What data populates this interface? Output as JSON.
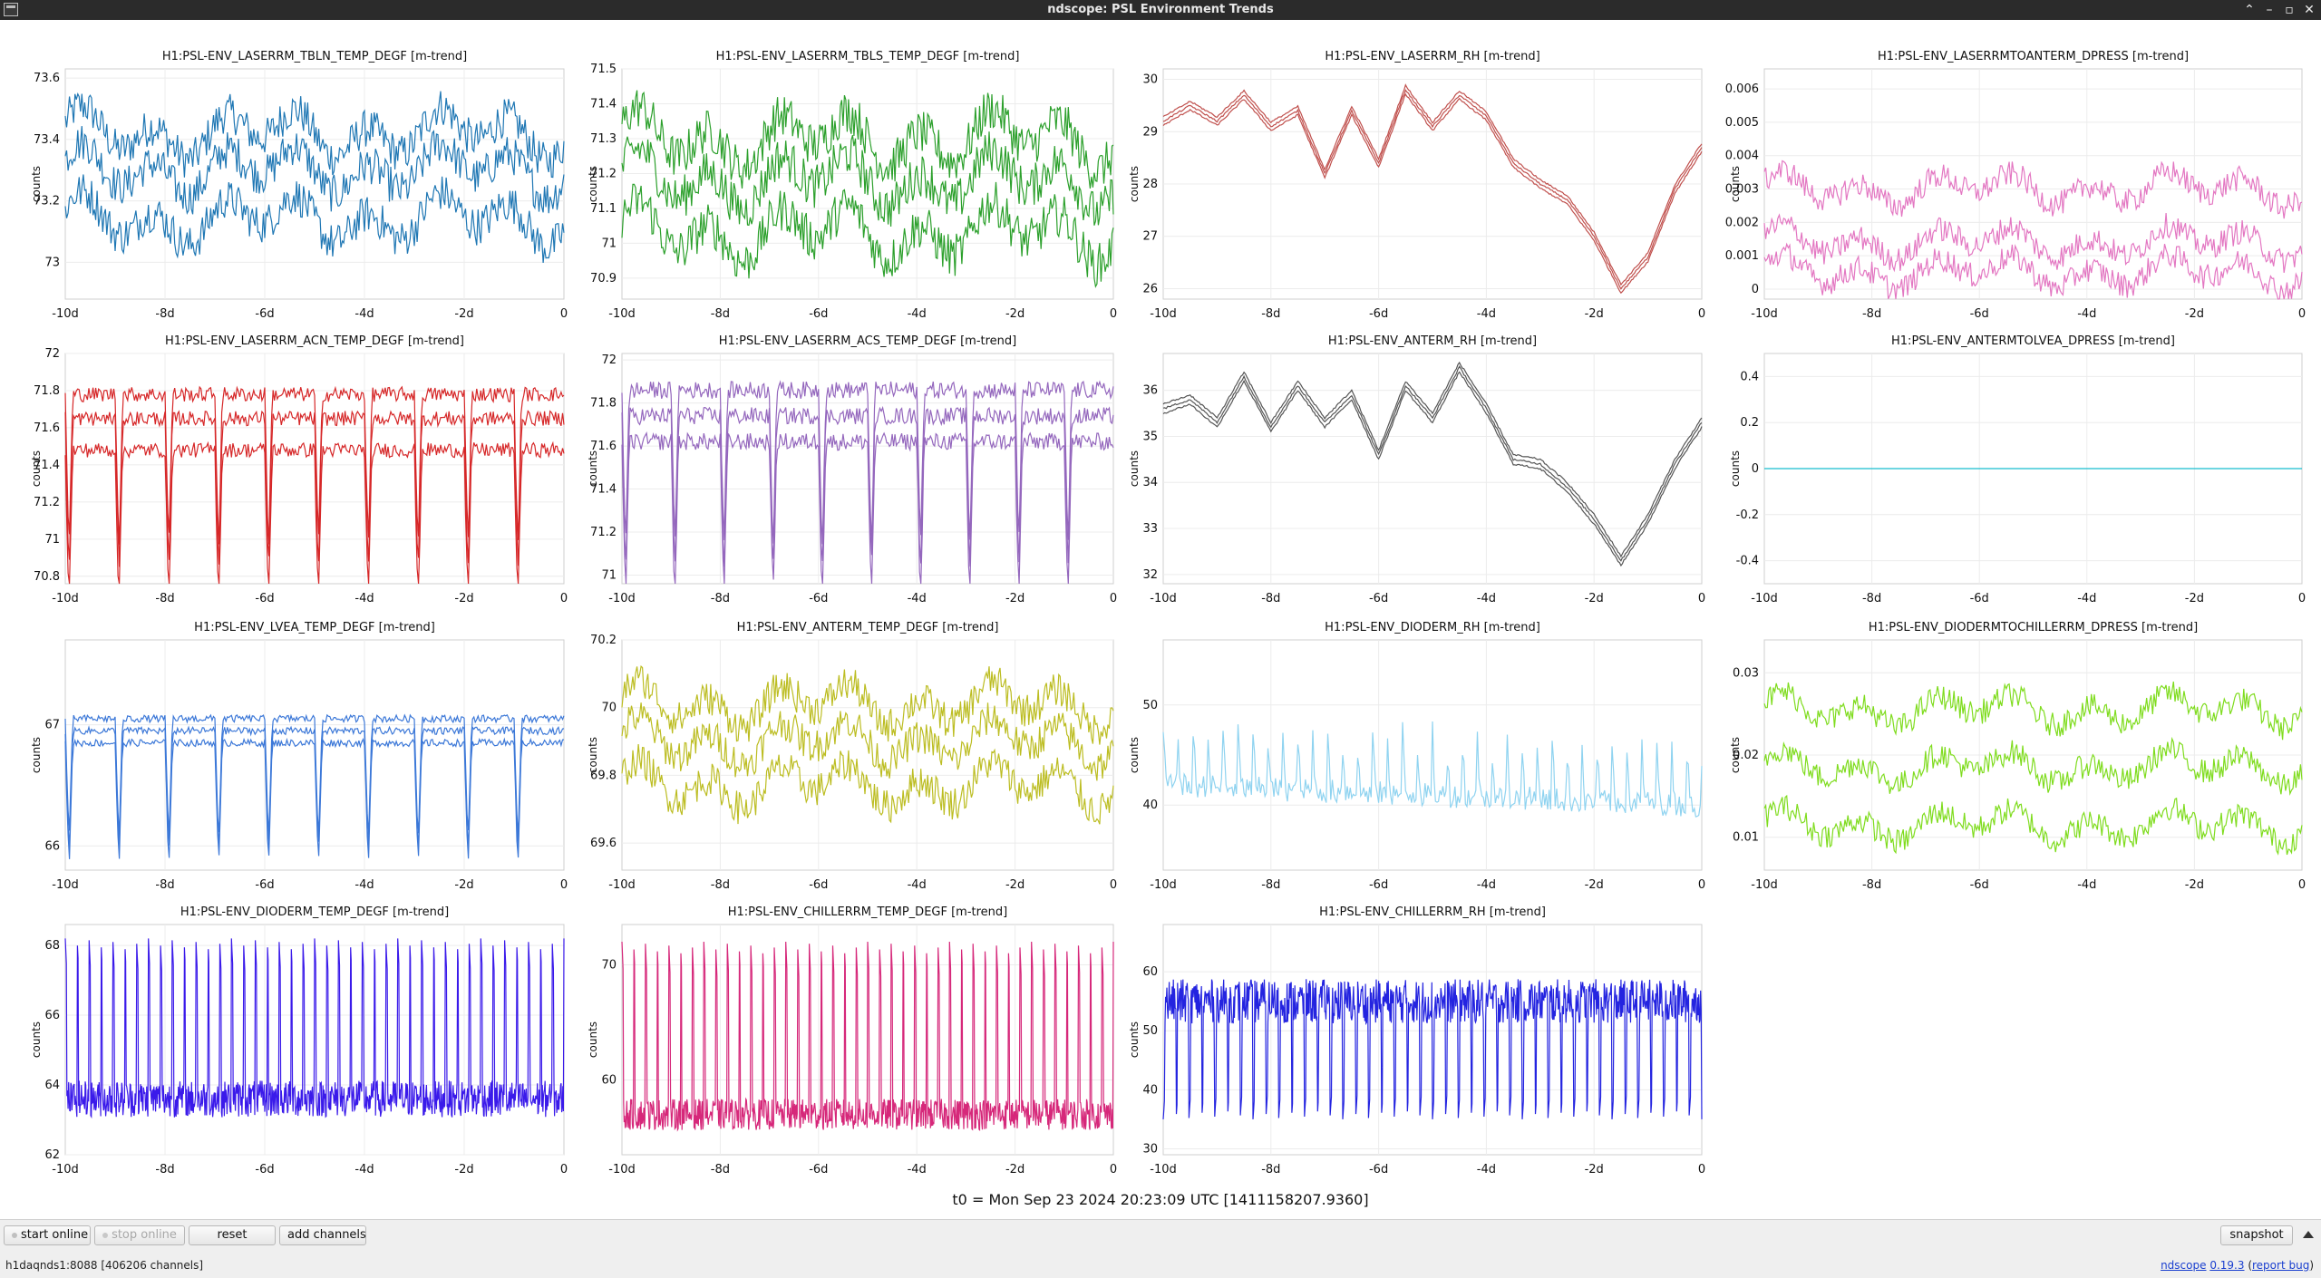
{
  "window": {
    "title": "ndscope: PSL Environment Trends"
  },
  "plots": [
    {
      "title": "H1:PSL-ENV_LASERRM_TBLN_TEMP_DEGF [m-trend]",
      "ylabel": "counts",
      "color": "#1f77b4",
      "yticks": [
        "73.6",
        "73.4",
        "73.2",
        "73"
      ],
      "xticks": [
        "-10d",
        "-8d",
        "-6d",
        "-4d",
        "-2d",
        "0"
      ],
      "ylim": [
        72.88,
        73.63
      ],
      "style": "band3",
      "levels": [
        73.42,
        73.3,
        73.14
      ],
      "variation": 0.05
    },
    {
      "title": "H1:PSL-ENV_LASERRM_TBLS_TEMP_DEGF [m-trend]",
      "ylabel": "counts",
      "color": "#2ca02c",
      "yticks": [
        "71.5",
        "71.4",
        "71.3",
        "71.2",
        "71.1",
        "71",
        "70.9"
      ],
      "xticks": [
        "-10d",
        "-8d",
        "-6d",
        "-4d",
        "-2d",
        "0"
      ],
      "ylim": [
        70.84,
        71.5
      ],
      "style": "band3",
      "levels": [
        71.3,
        71.18,
        71.03
      ],
      "variation": 0.05
    },
    {
      "title": "H1:PSL-ENV_LASERRM_RH [m-trend]",
      "ylabel": "counts",
      "color": "#c0504d",
      "yticks": [
        "30",
        "29",
        "28",
        "27",
        "26"
      ],
      "xticks": [
        "-10d",
        "-8d",
        "-6d",
        "-4d",
        "-2d",
        "0"
      ],
      "ylim": [
        25.8,
        30.2
      ],
      "style": "rh",
      "levels": [
        29.2,
        29.5,
        29.2,
        29.7,
        29.1,
        29.4,
        28.2,
        29.4,
        28.4,
        29.8,
        29.1,
        29.7,
        29.3,
        28.4,
        28.0,
        27.7,
        27.0,
        26.0,
        26.6,
        27.9,
        28.7
      ],
      "variation": 0.08
    },
    {
      "title": "H1:PSL-ENV_LASERRMTOANTERM_DPRESS [m-trend]",
      "ylabel": "counts",
      "color": "#e377c2",
      "yticks": [
        "0.006",
        "0.005",
        "0.004",
        "0.003",
        "0.002",
        "0.001",
        "0"
      ],
      "xticks": [
        "-10d",
        "-8d",
        "-6d",
        "-4d",
        "-2d",
        "0"
      ],
      "ylim": [
        -0.0003,
        0.0066
      ],
      "style": "dpress",
      "levels": [
        0.003,
        0.0014,
        0.0005
      ],
      "variation": 0.0003
    },
    {
      "title": "H1:PSL-ENV_LASERRM_ACN_TEMP_DEGF [m-trend]",
      "ylabel": "counts",
      "color": "#d62728",
      "yticks": [
        "72",
        "71.8",
        "71.6",
        "71.4",
        "71.2",
        "71",
        "70.8"
      ],
      "xticks": [
        "-10d",
        "-8d",
        "-6d",
        "-4d",
        "-2d",
        "0"
      ],
      "ylim": [
        70.76,
        72.0
      ],
      "style": "dip3",
      "levels": [
        71.78,
        71.65,
        71.48
      ],
      "variation": 0.04
    },
    {
      "title": "H1:PSL-ENV_LASERRM_ACS_TEMP_DEGF [m-trend]",
      "ylabel": "counts",
      "color": "#9467bd",
      "yticks": [
        "72",
        "71.8",
        "71.6",
        "71.4",
        "71.2",
        "71"
      ],
      "xticks": [
        "-10d",
        "-8d",
        "-6d",
        "-4d",
        "-2d",
        "0"
      ],
      "ylim": [
        70.96,
        72.03
      ],
      "style": "dip3",
      "levels": [
        71.86,
        71.74,
        71.62
      ],
      "variation": 0.04
    },
    {
      "title": "H1:PSL-ENV_ANTERM_RH [m-trend]",
      "ylabel": "counts",
      "color": "#555555",
      "yticks": [
        "36",
        "35",
        "34",
        "33",
        "32"
      ],
      "xticks": [
        "-10d",
        "-8d",
        "-6d",
        "-4d",
        "-2d",
        "0"
      ],
      "ylim": [
        31.8,
        36.8
      ],
      "style": "rh",
      "levels": [
        35.6,
        35.8,
        35.3,
        36.3,
        35.2,
        36.1,
        35.3,
        35.9,
        34.6,
        36.1,
        35.4,
        36.5,
        35.6,
        34.5,
        34.4,
        33.9,
        33.2,
        32.3,
        33.2,
        34.4,
        35.3
      ],
      "variation": 0.1
    },
    {
      "title": "H1:PSL-ENV_ANTERMTOLVEA_DPRESS [m-trend]",
      "ylabel": "counts",
      "color": "#17becf",
      "yticks": [
        "0.4",
        "0.2",
        "0",
        "-0.2",
        "-0.4"
      ],
      "xticks": [
        "-10d",
        "-8d",
        "-6d",
        "-4d",
        "-2d",
        "0"
      ],
      "ylim": [
        -0.5,
        0.5
      ],
      "style": "flat",
      "levels": [
        0
      ],
      "variation": 0
    },
    {
      "title": "H1:PSL-ENV_LVEA_TEMP_DEGF [m-trend]",
      "ylabel": "counts",
      "color": "#3c78d8",
      "yticks": [
        "67",
        "66"
      ],
      "xticks": [
        "-10d",
        "-8d",
        "-6d",
        "-4d",
        "-2d",
        "0"
      ],
      "ylim": [
        65.8,
        67.7
      ],
      "style": "dip3",
      "levels": [
        67.05,
        66.95,
        66.85
      ],
      "variation": 0.03
    },
    {
      "title": "H1:PSL-ENV_ANTERM_TEMP_DEGF [m-trend]",
      "ylabel": "counts",
      "color": "#bcbd22",
      "yticks": [
        "70.2",
        "70",
        "69.8",
        "69.6"
      ],
      "xticks": [
        "-10d",
        "-8d",
        "-6d",
        "-4d",
        "-2d",
        "0"
      ],
      "ylim": [
        69.52,
        70.2
      ],
      "style": "band3",
      "levels": [
        70.01,
        69.9,
        69.77
      ],
      "variation": 0.04
    },
    {
      "title": "H1:PSL-ENV_DIODERM_RH [m-trend]",
      "ylabel": "counts",
      "color": "#8fd3f0",
      "yticks": [
        "50",
        "40"
      ],
      "xticks": [
        "-10d",
        "-8d",
        "-6d",
        "-4d",
        "-2d",
        "0"
      ],
      "ylim": [
        33.5,
        56.5
      ],
      "style": "spiky",
      "levels": [
        42,
        48
      ],
      "variation": 1.2
    },
    {
      "title": "H1:PSL-ENV_DIODERMTOCHILLERRM_DPRESS [m-trend]",
      "ylabel": "counts",
      "color": "#7fdc1e",
      "yticks": [
        "0.03",
        "0.02",
        "0.01"
      ],
      "xticks": [
        "-10d",
        "-8d",
        "-6d",
        "-4d",
        "-2d",
        "0"
      ],
      "ylim": [
        0.006,
        0.034
      ],
      "style": "band3",
      "levels": [
        0.0255,
        0.0185,
        0.0115
      ],
      "variation": 0.0012
    },
    {
      "title": "H1:PSL-ENV_DIODERM_TEMP_DEGF [m-trend]",
      "ylabel": "counts",
      "color": "#3a1aea",
      "yticks": [
        "68",
        "66",
        "64",
        "62"
      ],
      "xticks": [
        "-10d",
        "-8d",
        "-6d",
        "-4d",
        "-2d",
        "0"
      ],
      "ylim": [
        62,
        68.6
      ],
      "style": "pulse",
      "levels": [
        63.6,
        68.2
      ],
      "variation": 0.35
    },
    {
      "title": "H1:PSL-ENV_CHILLERRM_TEMP_DEGF [m-trend]",
      "ylabel": "counts",
      "color": "#d6287a",
      "yticks": [
        "70",
        "60"
      ],
      "xticks": [
        "-10d",
        "-8d",
        "-6d",
        "-4d",
        "-2d",
        "0"
      ],
      "ylim": [
        53.5,
        73.5
      ],
      "style": "pulse",
      "levels": [
        57,
        72
      ],
      "variation": 0.9
    },
    {
      "title": "H1:PSL-ENV_CHILLERRM_RH [m-trend]",
      "ylabel": "counts",
      "color": "#2424e0",
      "yticks": [
        "60",
        "50",
        "40",
        "30"
      ],
      "xticks": [
        "-10d",
        "-8d",
        "-6d",
        "-4d",
        "-2d",
        "0"
      ],
      "ylim": [
        29,
        68
      ],
      "style": "pulseinv",
      "levels": [
        55,
        35
      ],
      "variation": 2.5
    }
  ],
  "t0": "t0 = Mon Sep 23 2024 20:23:09 UTC [1411158207.9360]",
  "toolbar": {
    "start_online": "start online",
    "stop_online": "stop online",
    "reset": "reset",
    "add_channels": "add channels",
    "snapshot": "snapshot"
  },
  "status": {
    "server": "h1daqnds1:8088  [406206 channels]"
  },
  "footer": {
    "app_link": "ndscope",
    "version": "0.19.3",
    "report_bug": "report bug"
  }
}
